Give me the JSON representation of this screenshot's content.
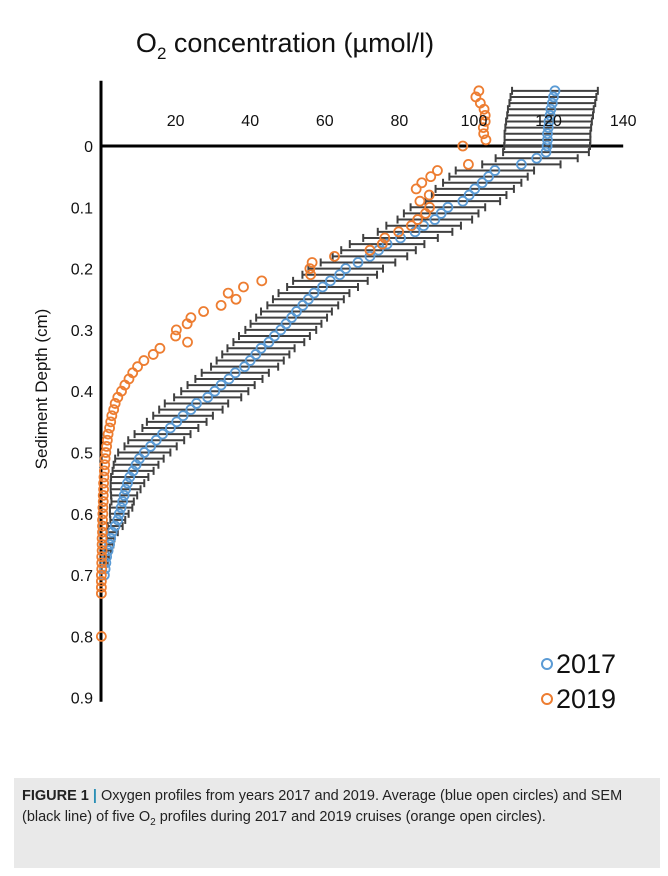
{
  "chart_data": {
    "type": "scatter",
    "title_main": "O",
    "title_sub": "2",
    "title_rest": " concentration (µmol/l)",
    "ylabel": "Sediment Depth (cm)",
    "x_ticks": [
      20,
      40,
      60,
      80,
      100,
      120,
      140
    ],
    "y_ticks": [
      0,
      0.1,
      0.2,
      0.3,
      0.4,
      0.5,
      0.6,
      0.7,
      0.8,
      0.9
    ],
    "x_tick_labels": [
      "20",
      "40",
      "60",
      "80",
      "100",
      "120",
      "140"
    ],
    "y_tick_labels": [
      "0",
      "0.1",
      "0.2",
      "0.3",
      "0.4",
      "0.5",
      "0.6",
      "0.7",
      "0.8",
      "0.9"
    ],
    "xlim": [
      0,
      140
    ],
    "ylim": [
      -0.1,
      0.9
    ],
    "y_inverted": true,
    "legend_position": "bottom-right",
    "series": [
      {
        "name": "2017",
        "color": "#5b9bd5",
        "marker": "open-circle",
        "error_color": "#404040",
        "points": [
          [
            121.7,
            -0.09,
            11.5
          ],
          [
            121.3,
            -0.08,
            11.5
          ],
          [
            121.0,
            -0.07,
            11.5
          ],
          [
            120.6,
            -0.06,
            11.5
          ],
          [
            120.4,
            -0.05,
            11.5
          ],
          [
            120.1,
            -0.04,
            11.5
          ],
          [
            119.9,
            -0.03,
            11.5
          ],
          [
            119.7,
            -0.02,
            11.5
          ],
          [
            119.7,
            -0.01,
            11.5
          ],
          [
            119.6,
            0.0,
            11.5
          ],
          [
            119.3,
            0.01,
            11.5
          ],
          [
            116.8,
            0.02,
            11.0
          ],
          [
            112.7,
            0.03,
            10.5
          ],
          [
            105.6,
            0.04,
            10.5
          ],
          [
            103.9,
            0.05,
            10.5
          ],
          [
            102.2,
            0.06,
            10.5
          ],
          [
            100.2,
            0.07,
            10.5
          ],
          [
            98.7,
            0.08,
            10.0
          ],
          [
            97.0,
            0.09,
            10.0
          ],
          [
            93.0,
            0.1,
            10.0
          ],
          [
            91.2,
            0.11,
            10.0
          ],
          [
            89.5,
            0.12,
            10.0
          ],
          [
            86.5,
            0.13,
            10.0
          ],
          [
            84.2,
            0.14,
            10.0
          ],
          [
            80.3,
            0.15,
            10.0
          ],
          [
            76.7,
            0.16,
            10.0
          ],
          [
            74.4,
            0.17,
            10.0
          ],
          [
            72.1,
            0.18,
            10.0
          ],
          [
            68.9,
            0.19,
            10.0
          ],
          [
            65.6,
            0.2,
            10.0
          ],
          [
            64.0,
            0.21,
            10.0
          ],
          [
            61.5,
            0.22,
            10.0
          ],
          [
            59.4,
            0.23,
            9.5
          ],
          [
            57.1,
            0.24,
            9.5
          ],
          [
            55.6,
            0.25,
            9.5
          ],
          [
            54.1,
            0.26,
            9.5
          ],
          [
            52.4,
            0.27,
            9.5
          ],
          [
            51.1,
            0.28,
            9.5
          ],
          [
            49.6,
            0.29,
            9.5
          ],
          [
            48.2,
            0.3,
            9.5
          ],
          [
            46.5,
            0.31,
            9.5
          ],
          [
            45.0,
            0.32,
            9.5
          ],
          [
            42.9,
            0.33,
            9.0
          ],
          [
            41.5,
            0.34,
            9.0
          ],
          [
            40.0,
            0.35,
            9.0
          ],
          [
            38.5,
            0.36,
            9.0
          ],
          [
            36.0,
            0.37,
            9.0
          ],
          [
            34.3,
            0.38,
            9.0
          ],
          [
            32.2,
            0.39,
            9.0
          ],
          [
            30.5,
            0.4,
            9.0
          ],
          [
            28.6,
            0.41,
            9.0
          ],
          [
            25.6,
            0.42,
            8.5
          ],
          [
            24.1,
            0.43,
            8.5
          ],
          [
            22.0,
            0.44,
            8.0
          ],
          [
            20.3,
            0.45,
            8.0
          ],
          [
            18.6,
            0.46,
            7.5
          ],
          [
            16.5,
            0.47,
            7.5
          ],
          [
            14.8,
            0.48,
            7.5
          ],
          [
            13.3,
            0.49,
            7.0
          ],
          [
            11.6,
            0.5,
            7.0
          ],
          [
            10.3,
            0.51,
            6.5
          ],
          [
            9.4,
            0.52,
            6.0
          ],
          [
            8.6,
            0.53,
            5.5
          ],
          [
            7.7,
            0.54,
            5.0
          ],
          [
            7.1,
            0.55,
            4.5
          ],
          [
            6.6,
            0.56,
            4.0
          ],
          [
            6.2,
            0.57,
            3.5
          ],
          [
            5.8,
            0.58,
            3.0
          ],
          [
            5.4,
            0.59,
            3.0
          ],
          [
            4.9,
            0.6,
            2.5
          ],
          [
            4.5,
            0.61,
            2.0
          ],
          [
            3.8,
            0.62,
            2.0
          ],
          [
            3.0,
            0.63,
            1.5
          ],
          [
            2.6,
            0.64,
            1.0
          ],
          [
            2.3,
            0.65,
            1.0
          ],
          [
            1.9,
            0.66,
            0.8
          ],
          [
            1.5,
            0.67,
            0.6
          ],
          [
            1.3,
            0.68,
            0.5
          ],
          [
            1.1,
            0.69,
            0.4
          ],
          [
            0.9,
            0.7,
            0.3
          ]
        ]
      },
      {
        "name": "2019",
        "color": "#ed7d31",
        "marker": "open-circle",
        "points": [
          [
            101.3,
            -0.09
          ],
          [
            100.5,
            -0.08
          ],
          [
            101.7,
            -0.07
          ],
          [
            102.7,
            -0.06
          ],
          [
            103.0,
            -0.05
          ],
          [
            103.0,
            -0.04
          ],
          [
            102.5,
            -0.03
          ],
          [
            102.6,
            -0.02
          ],
          [
            103.2,
            -0.01
          ],
          [
            97.0,
            0.0
          ],
          [
            98.5,
            0.03
          ],
          [
            90.2,
            0.04
          ],
          [
            88.4,
            0.05
          ],
          [
            86.0,
            0.06
          ],
          [
            84.5,
            0.07
          ],
          [
            88.0,
            0.08
          ],
          [
            85.5,
            0.09
          ],
          [
            88.1,
            0.1
          ],
          [
            87.0,
            0.11
          ],
          [
            84.9,
            0.12
          ],
          [
            83.2,
            0.13
          ],
          [
            79.8,
            0.14
          ],
          [
            76.1,
            0.15
          ],
          [
            75.4,
            0.16
          ],
          [
            72.1,
            0.17
          ],
          [
            62.6,
            0.18
          ],
          [
            56.6,
            0.19
          ],
          [
            56.0,
            0.2
          ],
          [
            56.2,
            0.21
          ],
          [
            43.1,
            0.22
          ],
          [
            38.2,
            0.23
          ],
          [
            34.1,
            0.24
          ],
          [
            36.2,
            0.25
          ],
          [
            32.2,
            0.26
          ],
          [
            27.5,
            0.27
          ],
          [
            24.1,
            0.28
          ],
          [
            23.1,
            0.29
          ],
          [
            20.2,
            0.3
          ],
          [
            20.0,
            0.31
          ],
          [
            23.2,
            0.32
          ],
          [
            15.8,
            0.33
          ],
          [
            14.0,
            0.34
          ],
          [
            11.5,
            0.35
          ],
          [
            9.8,
            0.36
          ],
          [
            8.5,
            0.37
          ],
          [
            7.5,
            0.38
          ],
          [
            6.4,
            0.39
          ],
          [
            5.5,
            0.4
          ],
          [
            4.5,
            0.41
          ],
          [
            3.8,
            0.42
          ],
          [
            3.4,
            0.43
          ],
          [
            2.9,
            0.44
          ],
          [
            2.6,
            0.45
          ],
          [
            2.3,
            0.46
          ],
          [
            1.9,
            0.47
          ],
          [
            1.7,
            0.48
          ],
          [
            1.5,
            0.49
          ],
          [
            1.3,
            0.5
          ],
          [
            1.1,
            0.51
          ],
          [
            1.0,
            0.52
          ],
          [
            0.9,
            0.53
          ],
          [
            0.8,
            0.54
          ],
          [
            0.7,
            0.55
          ],
          [
            0.7,
            0.56
          ],
          [
            0.6,
            0.57
          ],
          [
            0.6,
            0.58
          ],
          [
            0.5,
            0.59
          ],
          [
            0.5,
            0.6
          ],
          [
            0.4,
            0.61
          ],
          [
            0.4,
            0.62
          ],
          [
            0.4,
            0.63
          ],
          [
            0.3,
            0.64
          ],
          [
            0.3,
            0.65
          ],
          [
            0.3,
            0.66
          ],
          [
            0.2,
            0.67
          ],
          [
            0.2,
            0.68
          ],
          [
            0.2,
            0.69
          ],
          [
            0.1,
            0.7
          ],
          [
            0.1,
            0.71
          ],
          [
            0.1,
            0.72
          ],
          [
            0.1,
            0.73
          ],
          [
            0.1,
            0.8
          ]
        ]
      }
    ]
  },
  "caption": {
    "label": "FIGURE 1",
    "separator": "|",
    "text_a": "Oxygen profiles from years 2017 and 2019. Average (blue open circles) and SEM (black line) of five O",
    "text_sub": "2",
    "text_b": " profiles during 2017 and 2019 cruises (orange open circles)."
  }
}
